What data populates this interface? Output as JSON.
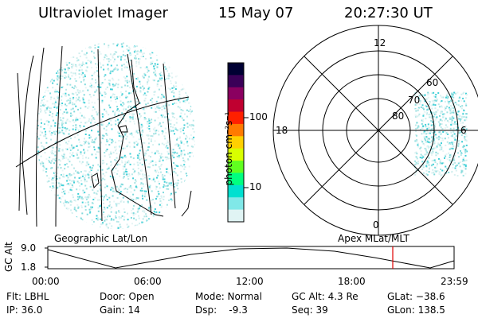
{
  "header": {
    "instrument": "Ultraviolet Imager",
    "date": "15 May 07",
    "time": "20:27:30 UT"
  },
  "panels": {
    "left_label": "Geographic Lat/Lon",
    "right_label": "Apex MLat/MLT"
  },
  "colorbar": {
    "unit_label": "photon cm⁻²s⁻¹",
    "ticks": [
      "100",
      "10"
    ],
    "colors": [
      "#000033",
      "#3a0058",
      "#8a0060",
      "#c00030",
      "#ff2000",
      "#ff7a00",
      "#ffd000",
      "#d8ff00",
      "#60ff20",
      "#00ff80",
      "#00e0d0",
      "#80e8e8",
      "#e0f4f4"
    ]
  },
  "polar": {
    "mlt_labels": [
      "12",
      "18",
      "6",
      "0"
    ],
    "lat_labels": [
      "60",
      "70",
      "80"
    ]
  },
  "altitude": {
    "axis_label": "GC Alt",
    "y_ticks": [
      "9.0",
      "1.8"
    ],
    "x_ticks": [
      "00:00",
      "06:00",
      "12:00",
      "18:00",
      "23:59"
    ],
    "marker_color": "#e00000"
  },
  "footer": {
    "filter": "Flt: LBHL",
    "ip": "IP: 36.0",
    "door": "Door: Open",
    "gain": "Gain: 14",
    "mode": "Mode: Normal",
    "dsp": "Dsp:    -9.3",
    "gc_alt": "GC Alt: 4.3 Re",
    "seq": "Seq: 39",
    "glat": "GLat: −38.6",
    "glon": "GLon: 138.5"
  }
}
